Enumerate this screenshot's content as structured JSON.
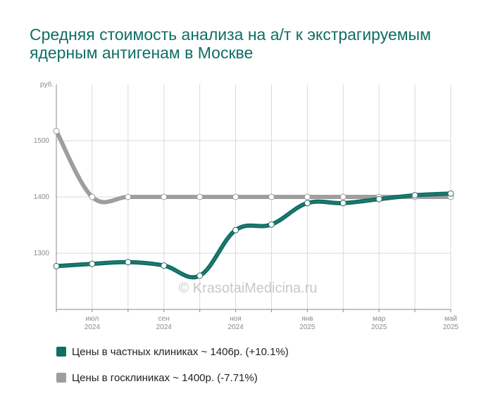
{
  "title": "Средняя стоимость анализа на а/т к экстрагируемым ядерным антигенам в Москве",
  "watermark": "© KrasotaiMedicina.ru",
  "colors": {
    "private": "#0f6e64",
    "public": "#9e9e9e",
    "grid": "#d9d9d9",
    "axis": "#888888",
    "title": "#0f6e64"
  },
  "chart_data": {
    "type": "line",
    "title": "Средняя стоимость анализа на а/т к экстрагируемым ядерным антигенам в Москве",
    "ylabel": "руб.",
    "ylim": [
      1200,
      1600
    ],
    "yticks": [
      1300,
      1400,
      1500
    ],
    "grid": true,
    "legend_position": "bottom",
    "x": [
      "2024-06",
      "2024-07",
      "2024-08",
      "2024-09",
      "2024-10",
      "2024-11",
      "2024-12",
      "2025-01",
      "2025-02",
      "2025-03",
      "2025-04",
      "2025-05"
    ],
    "x_tick_labels": [
      {
        "index": 1,
        "month": "июл",
        "year": "2024"
      },
      {
        "index": 3,
        "month": "сен",
        "year": "2024"
      },
      {
        "index": 5,
        "month": "ноя",
        "year": "2024"
      },
      {
        "index": 7,
        "month": "янв",
        "year": "2025"
      },
      {
        "index": 9,
        "month": "мар",
        "year": "2025"
      },
      {
        "index": 11,
        "month": "май",
        "year": "2025"
      }
    ],
    "series": [
      {
        "name": "Цены в частных клиниках ~ 1406р. (+10.1%)",
        "color": "#0f6e64",
        "values": [
          1277,
          1281,
          1284,
          1278,
          1260,
          1341,
          1351,
          1389,
          1389,
          1396,
          1403,
          1406
        ]
      },
      {
        "name": "Цены в госклиниках ~ 1400р. (-7.71%)",
        "color": "#9e9e9e",
        "values": [
          1517,
          1400,
          1400,
          1400,
          1400,
          1400,
          1400,
          1400,
          1400,
          1400,
          1400,
          1400
        ]
      }
    ]
  }
}
